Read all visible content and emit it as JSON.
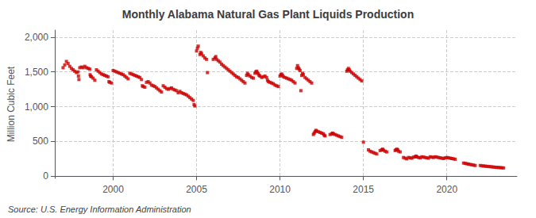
{
  "chart_data": {
    "type": "scatter",
    "title": "Monthly Alabama Natural Gas Plant Liquids Production",
    "ylabel": "Million Cubic Feet",
    "annotation": "Source: U.S. Energy Information Administration",
    "color": "#cc0000",
    "marker": "square",
    "grid": true,
    "xlim": [
      1996.5,
      2024.2
    ],
    "xticks": [
      2000,
      2005,
      2010,
      2015,
      2020
    ],
    "ylim": [
      -30,
      2100
    ],
    "yticks": [
      0,
      500,
      {
        "value": 1000,
        "label": "1,000"
      },
      {
        "value": 1500,
        "label": "1,500"
      },
      {
        "value": 2000,
        "label": "2,000"
      }
    ],
    "x": [
      1997.0,
      1997.1,
      1997.2,
      1997.3,
      1997.4,
      1997.5,
      1997.6,
      1997.7,
      1997.8,
      1997.9,
      1997.92,
      1997.95,
      1998.0,
      1998.1,
      1998.2,
      1998.3,
      1998.4,
      1998.5,
      1998.6,
      1998.62,
      1998.65,
      1998.7,
      1998.8,
      1998.9,
      1999.0,
      1999.1,
      1999.2,
      1999.3,
      1999.4,
      1999.5,
      1999.6,
      1999.7,
      1999.75,
      1999.8,
      1999.9,
      2000.0,
      2000.1,
      2000.2,
      2000.3,
      2000.4,
      2000.5,
      2000.6,
      2000.7,
      2000.8,
      2000.9,
      2001.0,
      2001.1,
      2001.2,
      2001.3,
      2001.4,
      2001.5,
      2001.6,
      2001.7,
      2001.75,
      2001.8,
      2001.9,
      2002.0,
      2002.1,
      2002.2,
      2002.3,
      2002.4,
      2002.5,
      2002.6,
      2002.7,
      2002.8,
      2002.9,
      2003.0,
      2003.1,
      2003.2,
      2003.3,
      2003.4,
      2003.5,
      2003.6,
      2003.7,
      2003.8,
      2003.9,
      2004.0,
      2004.1,
      2004.2,
      2004.3,
      2004.4,
      2004.5,
      2004.6,
      2004.7,
      2004.8,
      2004.85,
      2004.9,
      2005.0,
      2005.05,
      2005.1,
      2005.2,
      2005.25,
      2005.3,
      2005.4,
      2005.5,
      2005.6,
      2005.65,
      2006.0,
      2006.1,
      2006.15,
      2006.2,
      2006.3,
      2006.4,
      2006.5,
      2006.6,
      2006.7,
      2006.8,
      2006.9,
      2007.0,
      2007.1,
      2007.2,
      2007.3,
      2007.4,
      2007.5,
      2007.6,
      2007.7,
      2007.8,
      2007.9,
      2008.0,
      2008.05,
      2008.1,
      2008.2,
      2008.3,
      2008.4,
      2008.5,
      2008.55,
      2008.6,
      2008.65,
      2008.7,
      2008.75,
      2008.8,
      2008.9,
      2009.0,
      2009.1,
      2009.2,
      2009.25,
      2009.3,
      2009.4,
      2009.5,
      2009.6,
      2009.7,
      2009.8,
      2009.9,
      2010.0,
      2010.05,
      2010.1,
      2010.15,
      2010.2,
      2010.3,
      2010.4,
      2010.5,
      2010.6,
      2010.7,
      2010.8,
      2010.9,
      2011.0,
      2011.05,
      2011.1,
      2011.15,
      2011.2,
      2011.25,
      2011.3,
      2011.35,
      2011.4,
      2011.5,
      2011.6,
      2011.7,
      2011.8,
      2011.9,
      2012.0,
      2012.05,
      2012.1,
      2012.15,
      2012.2,
      2012.3,
      2012.4,
      2012.5,
      2012.6,
      2012.65,
      2012.7,
      2013.0,
      2013.1,
      2013.15,
      2013.2,
      2013.3,
      2013.4,
      2013.5,
      2013.6,
      2013.7,
      2014.0,
      2014.05,
      2014.1,
      2014.15,
      2014.2,
      2014.3,
      2014.4,
      2014.5,
      2014.6,
      2014.7,
      2014.8,
      2014.9,
      2015.0,
      2015.3,
      2015.4,
      2015.5,
      2015.6,
      2015.7,
      2015.8,
      2016.0,
      2016.1,
      2016.15,
      2016.2,
      2016.3,
      2016.4,
      2016.9,
      2016.95,
      2017.0,
      2017.05,
      2017.1,
      2017.2,
      2017.4,
      2017.5,
      2017.6,
      2017.7,
      2017.8,
      2017.9,
      2018.0,
      2018.1,
      2018.15,
      2018.2,
      2018.3,
      2018.4,
      2018.5,
      2018.6,
      2018.7,
      2018.8,
      2018.9,
      2019.0,
      2019.1,
      2019.2,
      2019.3,
      2019.4,
      2019.5,
      2019.6,
      2019.7,
      2019.8,
      2019.9,
      2020.0,
      2020.1,
      2020.2,
      2020.3,
      2020.4,
      2020.5,
      2021.0,
      2021.1,
      2021.2,
      2021.3,
      2021.4,
      2021.5,
      2021.6,
      2021.7,
      2022.0,
      2022.1,
      2022.2,
      2022.3,
      2022.4,
      2022.5,
      2022.6,
      2022.7,
      2022.8,
      2022.9,
      2023.0,
      2023.1,
      2023.2,
      2023.3,
      2023.4
    ],
    "values": [
      1560,
      1600,
      1650,
      1620,
      1580,
      1550,
      1530,
      1510,
      1490,
      1500,
      1440,
      1390,
      1560,
      1570,
      1560,
      1580,
      1560,
      1550,
      1540,
      1460,
      1440,
      1430,
      1410,
      1380,
      1530,
      1510,
      1490,
      1470,
      1460,
      1450,
      1440,
      1430,
      1360,
      1350,
      1340,
      1520,
      1510,
      1500,
      1490,
      1480,
      1470,
      1460,
      1440,
      1420,
      1400,
      1480,
      1470,
      1460,
      1450,
      1440,
      1430,
      1420,
      1390,
      1300,
      1290,
      1280,
      1350,
      1360,
      1340,
      1310,
      1300,
      1290,
      1270,
      1250,
      1230,
      1210,
      1300,
      1280,
      1260,
      1250,
      1260,
      1270,
      1250,
      1240,
      1230,
      1200,
      1220,
      1200,
      1190,
      1180,
      1170,
      1150,
      1130,
      1110,
      1090,
      1030,
      1010,
      1800,
      1840,
      1870,
      1750,
      1780,
      1760,
      1730,
      1700,
      1680,
      1490,
      1680,
      1700,
      1720,
      1680,
      1660,
      1640,
      1610,
      1590,
      1570,
      1550,
      1530,
      1510,
      1490,
      1470,
      1450,
      1430,
      1420,
      1400,
      1380,
      1360,
      1340,
      1450,
      1480,
      1460,
      1440,
      1420,
      1410,
      1480,
      1500,
      1510,
      1490,
      1470,
      1450,
      1440,
      1420,
      1430,
      1440,
      1420,
      1380,
      1360,
      1350,
      1340,
      1330,
      1310,
      1300,
      1290,
      1440,
      1460,
      1470,
      1450,
      1430,
      1420,
      1410,
      1400,
      1390,
      1380,
      1360,
      1340,
      1550,
      1590,
      1560,
      1540,
      1520,
      1230,
      1450,
      1480,
      1460,
      1420,
      1400,
      1380,
      1360,
      1340,
      600,
      620,
      640,
      660,
      650,
      640,
      630,
      620,
      610,
      590,
      580,
      600,
      610,
      620,
      610,
      600,
      590,
      580,
      570,
      560,
      1510,
      1530,
      1550,
      1530,
      1510,
      1490,
      1470,
      1450,
      1430,
      1410,
      1390,
      1370,
      490,
      380,
      360,
      350,
      340,
      330,
      320,
      370,
      380,
      390,
      375,
      360,
      350,
      370,
      380,
      390,
      380,
      360,
      350,
      270,
      260,
      250,
      270,
      265,
      260,
      275,
      280,
      290,
      280,
      270,
      265,
      280,
      275,
      270,
      265,
      260,
      280,
      275,
      270,
      280,
      275,
      270,
      265,
      260,
      255,
      265,
      270,
      265,
      260,
      255,
      250,
      245,
      190,
      185,
      180,
      175,
      170,
      165,
      160,
      155,
      155,
      150,
      148,
      145,
      143,
      140,
      138,
      135,
      133,
      130,
      128,
      126,
      124,
      122,
      120
    ]
  }
}
